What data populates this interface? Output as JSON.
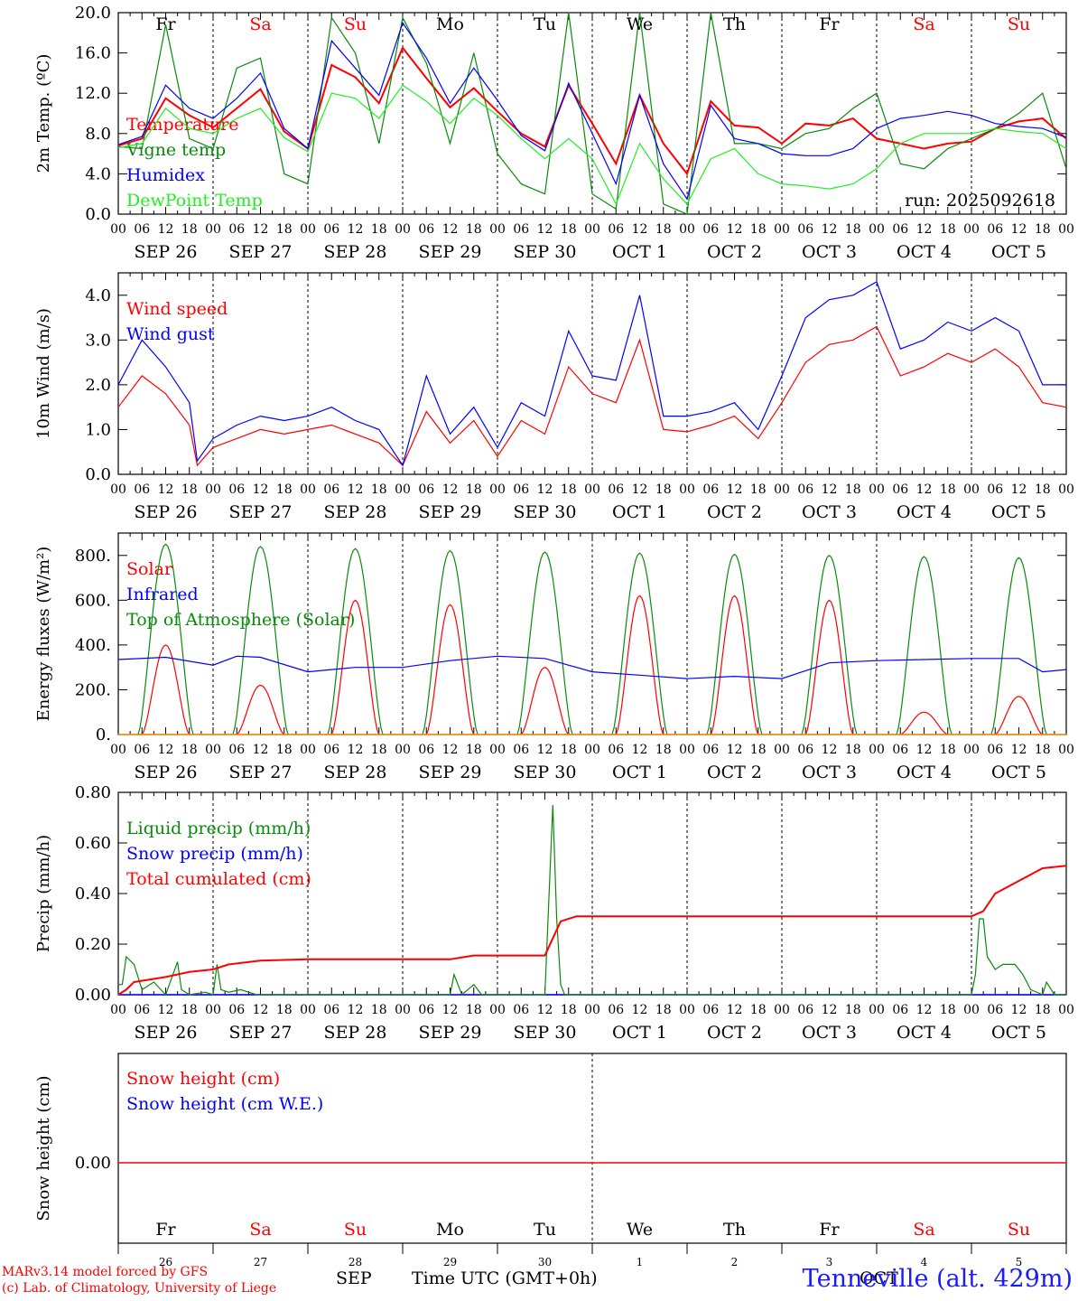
{
  "chart_data": [
    {
      "type": "line",
      "ylabel": "2m Temp. (ºC)",
      "ylim": [
        0,
        20
      ],
      "yticks": [
        "0.0",
        "4.0",
        "8.0",
        "12.0",
        "16.0",
        "20.0"
      ],
      "run_label": "run: 2025092618",
      "days": [
        "Fr",
        "Sa",
        "Su",
        "Mo",
        "Tu",
        "We",
        "Th",
        "Fr",
        "Sa",
        "Su"
      ],
      "legend": [
        "Temperature",
        "Vigne temp",
        "Humidex",
        "DewPoint Temp"
      ],
      "series": [
        {
          "name": "Temperature",
          "color": "#ff0000",
          "x": [
            0,
            6,
            12,
            18,
            24,
            30,
            36,
            42,
            48,
            54,
            60,
            66,
            72,
            78,
            84,
            90,
            96,
            102,
            108,
            114,
            120,
            126,
            132,
            138,
            144,
            150,
            156,
            162,
            168,
            174,
            180,
            186,
            192,
            198,
            204,
            210,
            216,
            222,
            228,
            234,
            240
          ],
          "values": [
            6.8,
            7.5,
            11.5,
            9.8,
            8.6,
            10.5,
            12.4,
            8.2,
            6.5,
            14.8,
            13.6,
            11.0,
            16.5,
            13.5,
            10.6,
            12.5,
            10.2,
            8.0,
            6.7,
            12.8,
            9.0,
            5.0,
            11.8,
            7.0,
            4.0,
            11.2,
            8.8,
            8.6,
            7.0,
            9.0,
            8.8,
            9.5,
            7.5,
            7.0,
            6.5,
            7.0,
            7.2,
            8.5,
            9.2,
            9.5,
            7.5
          ]
        },
        {
          "name": "Vigne temp",
          "color": "#0a8a0a",
          "x": [
            0,
            6,
            12,
            18,
            24,
            30,
            36,
            42,
            48,
            54,
            60,
            66,
            72,
            78,
            84,
            90,
            96,
            102,
            108,
            114,
            120,
            126,
            132,
            138,
            144,
            150,
            156,
            162,
            168,
            174,
            180,
            186,
            192,
            198,
            204,
            210,
            216,
            222,
            228,
            234,
            240
          ],
          "values": [
            6.7,
            6.5,
            18.8,
            7.5,
            6.5,
            14.5,
            15.5,
            4.0,
            3.0,
            19.5,
            16.0,
            7.0,
            19.5,
            15.0,
            7.0,
            16.0,
            6.0,
            3.0,
            2.0,
            20.0,
            2.0,
            0.5,
            20.0,
            1.0,
            0.0,
            20.0,
            7.0,
            7.0,
            6.5,
            8.0,
            8.5,
            10.5,
            12.0,
            5.0,
            4.5,
            6.5,
            7.5,
            8.5,
            10.0,
            12.0,
            4.5
          ]
        },
        {
          "name": "Humidex",
          "color": "#0000ff",
          "x": [
            0,
            6,
            12,
            18,
            24,
            30,
            36,
            42,
            48,
            54,
            60,
            66,
            72,
            78,
            84,
            90,
            96,
            102,
            108,
            114,
            120,
            126,
            132,
            138,
            144,
            150,
            156,
            162,
            168,
            174,
            180,
            186,
            192,
            198,
            204,
            210,
            216,
            222,
            228,
            234,
            240
          ],
          "values": [
            6.9,
            7.7,
            12.8,
            10.5,
            9.5,
            11.5,
            14.0,
            8.5,
            6.5,
            17.2,
            14.5,
            11.8,
            19.0,
            15.5,
            11.0,
            14.5,
            11.3,
            7.8,
            6.3,
            13.0,
            8.0,
            3.0,
            11.8,
            5.0,
            1.5,
            10.8,
            7.5,
            7.0,
            6.0,
            5.8,
            5.8,
            6.5,
            8.5,
            9.5,
            9.8,
            10.2,
            9.8,
            9.0,
            8.7,
            8.5,
            7.6
          ]
        },
        {
          "name": "DewPoint Temp",
          "color": "#22ee22",
          "x": [
            0,
            6,
            12,
            18,
            24,
            30,
            36,
            42,
            48,
            54,
            60,
            66,
            72,
            78,
            84,
            90,
            96,
            102,
            108,
            114,
            120,
            126,
            132,
            138,
            144,
            150,
            156,
            162,
            168,
            174,
            180,
            186,
            192,
            198,
            204,
            210,
            216,
            222,
            228,
            234,
            240
          ],
          "values": [
            6.6,
            7.0,
            10.5,
            8.5,
            8.0,
            9.5,
            10.5,
            7.6,
            6.2,
            12.0,
            11.5,
            9.5,
            12.8,
            11.2,
            9.0,
            11.5,
            9.8,
            7.5,
            5.5,
            7.5,
            5.5,
            1.0,
            7.0,
            3.5,
            1.0,
            5.5,
            6.5,
            4.0,
            3.0,
            2.8,
            2.5,
            3.0,
            4.5,
            7.0,
            8.0,
            8.0,
            8.0,
            8.5,
            8.2,
            8.0,
            6.5
          ]
        }
      ]
    },
    {
      "type": "line",
      "ylabel": "10m Wind (m/s)",
      "ylim": [
        0,
        4.5
      ],
      "yticks": [
        "0.0",
        "1.0",
        "2.0",
        "3.0",
        "4.0"
      ],
      "legend": [
        "Wind speed",
        "Wind gust"
      ],
      "series": [
        {
          "name": "Wind speed",
          "color": "#ff0000",
          "x": [
            0,
            6,
            12,
            18,
            20,
            24,
            30,
            36,
            42,
            48,
            54,
            60,
            66,
            72,
            78,
            84,
            90,
            96,
            102,
            108,
            114,
            120,
            126,
            132,
            138,
            144,
            150,
            156,
            162,
            168,
            174,
            180,
            186,
            192,
            198,
            204,
            210,
            216,
            222,
            228,
            234,
            240
          ],
          "values": [
            1.5,
            2.2,
            1.8,
            1.1,
            0.2,
            0.6,
            0.8,
            1.0,
            0.9,
            1.0,
            1.1,
            0.9,
            0.7,
            0.2,
            1.4,
            0.7,
            1.2,
            0.4,
            1.2,
            0.9,
            2.4,
            1.8,
            1.6,
            3.0,
            1.0,
            0.95,
            1.1,
            1.3,
            0.8,
            1.6,
            2.5,
            2.9,
            3.0,
            3.3,
            2.2,
            2.4,
            2.7,
            2.5,
            2.8,
            2.4,
            1.6,
            1.5
          ]
        },
        {
          "name": "Wind gust",
          "color": "#0000ff",
          "x": [
            0,
            6,
            12,
            18,
            20,
            24,
            30,
            36,
            42,
            48,
            54,
            60,
            66,
            72,
            78,
            84,
            90,
            96,
            102,
            108,
            114,
            120,
            126,
            132,
            138,
            144,
            150,
            156,
            162,
            168,
            174,
            180,
            186,
            192,
            198,
            204,
            210,
            216,
            222,
            228,
            234,
            240
          ],
          "values": [
            2.0,
            3.0,
            2.4,
            1.6,
            0.3,
            0.8,
            1.1,
            1.3,
            1.2,
            1.3,
            1.5,
            1.2,
            1.0,
            0.2,
            2.2,
            0.9,
            1.5,
            0.6,
            1.6,
            1.3,
            3.2,
            2.2,
            2.1,
            4.0,
            1.3,
            1.3,
            1.4,
            1.6,
            1.0,
            2.2,
            3.5,
            3.9,
            4.0,
            4.3,
            2.8,
            3.0,
            3.4,
            3.2,
            3.5,
            3.2,
            2.0,
            2.0
          ]
        }
      ]
    },
    {
      "type": "line",
      "ylabel": "Energy fluxes (W/m²)",
      "ylim": [
        0,
        900
      ],
      "yticks": [
        "0.",
        "200.",
        "400.",
        "600.",
        "800."
      ],
      "legend": [
        "Solar",
        "Infrared",
        "Top of Atmosphere (Solar)"
      ],
      "toa_peaks": [
        850,
        840,
        830,
        820,
        815,
        810,
        805,
        800,
        795,
        790
      ],
      "solar_peaks": [
        400,
        220,
        600,
        580,
        300,
        620,
        620,
        600,
        100,
        170
      ],
      "series": [
        {
          "name": "Infrared",
          "color": "#0000ff",
          "x": [
            0,
            12,
            24,
            30,
            36,
            48,
            60,
            72,
            84,
            96,
            108,
            120,
            132,
            144,
            156,
            168,
            180,
            192,
            204,
            216,
            228,
            234,
            240
          ],
          "values": [
            335,
            345,
            310,
            350,
            345,
            280,
            300,
            300,
            330,
            350,
            340,
            280,
            265,
            250,
            260,
            250,
            320,
            330,
            335,
            340,
            340,
            280,
            290
          ]
        }
      ]
    },
    {
      "type": "line",
      "ylabel": "Precip (mm/h)",
      "ylim": [
        0,
        0.8
      ],
      "yticks": [
        "0.00",
        "0.20",
        "0.40",
        "0.60",
        "0.80"
      ],
      "legend": [
        "Liquid precip (mm/h)",
        "Snow precip (mm/h)",
        "Total cumulated (cm)"
      ],
      "series": [
        {
          "name": "Liquid precip (mm/h)",
          "color": "#0a8a0a",
          "x": [
            0,
            1,
            2,
            4,
            6,
            9,
            12,
            15,
            16,
            18,
            22,
            24,
            25,
            26,
            28,
            31,
            35,
            48,
            72,
            84,
            85,
            87,
            90,
            92,
            96,
            108,
            110,
            111,
            112,
            113,
            114,
            118,
            120,
            216,
            217,
            218,
            219,
            220,
            222,
            224,
            227,
            229,
            231,
            234,
            235,
            237,
            240
          ],
          "values": [
            0.04,
            0.04,
            0.15,
            0.12,
            0.02,
            0.05,
            0.0,
            0.13,
            0.02,
            0.0,
            0.01,
            0.0,
            0.12,
            0.02,
            0.01,
            0.02,
            0.0,
            0.0,
            0.0,
            0.0,
            0.08,
            0.0,
            0.04,
            0.0,
            0.0,
            0.0,
            0.75,
            0.3,
            0.04,
            0.0,
            0.0,
            0.0,
            0.0,
            0.0,
            0.08,
            0.3,
            0.3,
            0.15,
            0.1,
            0.12,
            0.12,
            0.08,
            0.02,
            0.0,
            0.05,
            0.0,
            0.0
          ]
        },
        {
          "name": "Total cumulated (cm)",
          "color": "#ff0000",
          "x": [
            0,
            2,
            4,
            12,
            18,
            24,
            28,
            36,
            48,
            72,
            84,
            90,
            96,
            108,
            112,
            116,
            120,
            150,
            180,
            210,
            216,
            219,
            222,
            228,
            234,
            240
          ],
          "values": [
            0.0,
            0.02,
            0.05,
            0.07,
            0.09,
            0.1,
            0.12,
            0.135,
            0.14,
            0.14,
            0.14,
            0.155,
            0.155,
            0.155,
            0.29,
            0.31,
            0.31,
            0.31,
            0.31,
            0.31,
            0.31,
            0.33,
            0.4,
            0.45,
            0.5,
            0.51
          ]
        }
      ]
    },
    {
      "type": "line",
      "ylabel": "Snow height (cm)",
      "yticks": [
        "0.00"
      ],
      "legend": [
        "Snow height (cm)",
        "Snow height (cm W.E.)"
      ],
      "series": [
        {
          "name": "Snow height (cm)",
          "color": "#ff0000",
          "x": [
            0,
            240
          ],
          "values": [
            0,
            0
          ]
        }
      ],
      "day_numbers": [
        "26",
        "27",
        "28",
        "29",
        "30",
        "1",
        "2",
        "3",
        "4",
        "5"
      ]
    }
  ],
  "hour_ticks": [
    "00",
    "06",
    "12",
    "18"
  ],
  "date_labels": [
    "SEP 26",
    "SEP 27",
    "SEP 28",
    "SEP 29",
    "SEP 30",
    "OCT  1",
    "OCT  2",
    "OCT  3",
    "OCT  4",
    "OCT  5"
  ],
  "weekend_color": "#ff0000",
  "weekdays_weekend": [
    false,
    true,
    true,
    false,
    false,
    false,
    false,
    false,
    true,
    true
  ],
  "footer": {
    "model_line1": "MARv3.14 model forced by GFS",
    "model_line2": "(c) Lab. of Climatology, University of Liege",
    "month_sep": "SEP",
    "time_label": "Time UTC (GMT+0h)",
    "month_oct": "OCT",
    "station": "Tenneville (alt. 429m)"
  }
}
